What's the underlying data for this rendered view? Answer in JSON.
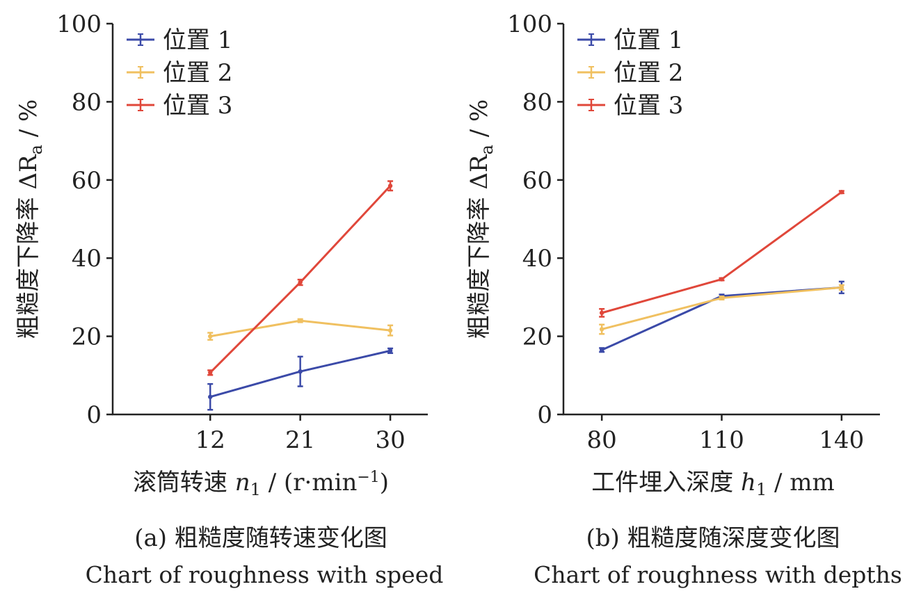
{
  "chart_data": [
    {
      "type": "line",
      "x": [
        12,
        21,
        30
      ],
      "xticks": [
        "12",
        "21",
        "30"
      ],
      "xlim": [
        2.25,
        33.75
      ],
      "ylim": [
        0,
        100
      ],
      "yticks": [
        "0",
        "20",
        "40",
        "60",
        "80",
        "100"
      ],
      "xlabel": "滚筒转速 n1 / (r·min−1)",
      "ylabel": "粗糙度下降率 ΔRa / %",
      "legend_position": "top-left",
      "grid": false,
      "series": [
        {
          "name": "位置 1",
          "color": "#3b4aa8",
          "values": [
            4.5,
            11.0,
            16.3
          ],
          "errors": [
            3.3,
            3.8,
            0.6
          ]
        },
        {
          "name": "位置 2",
          "color": "#f0c060",
          "values": [
            20.0,
            24.0,
            21.5
          ],
          "errors": [
            0.9,
            0.4,
            1.3
          ]
        },
        {
          "name": "位置 3",
          "color": "#e0473a",
          "values": [
            10.7,
            33.8,
            58.5
          ],
          "errors": [
            0.6,
            0.7,
            1.2
          ]
        }
      ],
      "caption_cn": "(a) 粗糙度随转速变化图",
      "caption_en": "Chart of roughness with speed"
    },
    {
      "type": "line",
      "x": [
        80,
        110,
        140
      ],
      "xticks": [
        "80",
        "110",
        "140"
      ],
      "xlim": [
        70.4,
        149.6
      ],
      "ylim": [
        0,
        100
      ],
      "yticks": [
        "0",
        "20",
        "40",
        "60",
        "80",
        "100"
      ],
      "xlabel": "工件埋入深度 h1 / mm",
      "ylabel": "粗糙度下降率 ΔRa / %",
      "legend_position": "top-left",
      "grid": false,
      "series": [
        {
          "name": "位置 1",
          "color": "#3b4aa8",
          "values": [
            16.5,
            30.3,
            32.5
          ],
          "errors": [
            0.5,
            0.4,
            1.5
          ]
        },
        {
          "name": "位置 2",
          "color": "#f0c060",
          "values": [
            21.8,
            29.8,
            32.5
          ],
          "errors": [
            1.2,
            0.4,
            0.6
          ]
        },
        {
          "name": "位置 3",
          "color": "#e0473a",
          "values": [
            26.0,
            34.6,
            56.9
          ],
          "errors": [
            1.0,
            0.3,
            0.3
          ]
        }
      ],
      "caption_cn": "(b) 粗糙度随深度变化图",
      "caption_en": "Chart of roughness with depths"
    }
  ],
  "axis_labels": {
    "a": {
      "x_prefix": "滚筒转速 ",
      "x_var": "n",
      "x_sub": "1",
      "x_mid": " / (r·min",
      "x_sup": "−1",
      "x_suffix": ")",
      "y_prefix": "粗糙度下降率 ΔR",
      "y_sub": "a",
      "y_suffix": " / %"
    },
    "b": {
      "x_prefix": "工件埋入深度 ",
      "x_var": "h",
      "x_sub": "1",
      "x_suffix": " / mm",
      "y_prefix": "粗糙度下降率 ΔR",
      "y_sub": "a",
      "y_suffix": " / %"
    }
  }
}
